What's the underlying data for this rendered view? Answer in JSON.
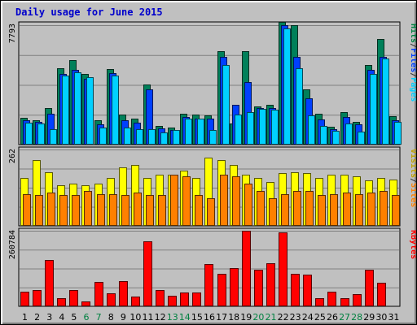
{
  "chart_data": {
    "title": "Daily usage for June 2015",
    "type": "bar",
    "days": [
      "1",
      "2",
      "3",
      "4",
      "5",
      "6",
      "7",
      "8",
      "9",
      "10",
      "11",
      "12",
      "13",
      "14",
      "15",
      "16",
      "17",
      "18",
      "19",
      "20",
      "21",
      "22",
      "23",
      "24",
      "25",
      "26",
      "27",
      "28",
      "29",
      "30",
      "31"
    ],
    "weekend_days": [
      "6",
      "7",
      "13",
      "14",
      "20",
      "21",
      "27",
      "28"
    ],
    "panels": [
      {
        "name": "top",
        "ymax_label": "7793",
        "ymax": 7793,
        "legend": [
          {
            "text": "Hits",
            "color": "#008040"
          },
          {
            "text": "/",
            "color": "#303030"
          },
          {
            "text": "Files",
            "color": "#0040ff"
          },
          {
            "text": "/",
            "color": "#303030"
          },
          {
            "text": "Pages",
            "color": "#00d0ff"
          }
        ],
        "series": [
          {
            "name": "Hits",
            "color": "#00805a",
            "values": [
              1750,
              1600,
              2400,
              5000,
              5500,
              4600,
              1600,
              4950,
              1950,
              1700,
              3900,
              1200,
              1100,
              2000,
              1950,
              1900,
              6100,
              1400,
              6100,
              2500,
              2600,
              8000,
              7800,
              3600,
              2000,
              1150,
              2100,
              1500,
              5200,
              6900,
              1850
            ]
          },
          {
            "name": "Files",
            "color": "#0040ff",
            "values": [
              1600,
              1500,
              2000,
              4600,
              4900,
              4300,
              1300,
              4650,
              1600,
              1450,
              3600,
              1050,
              950,
              1800,
              1700,
              1700,
              5700,
              2600,
              4100,
              2400,
              2400,
              7800,
              5700,
              3000,
              1650,
              1000,
              1800,
              1350,
              4900,
              5700,
              1600
            ]
          },
          {
            "name": "Pages",
            "color": "#00d0ff",
            "values": [
              1450,
              1400,
              1000,
              4500,
              4700,
              4400,
              1100,
              4500,
              1100,
              1000,
              1000,
              800,
              950,
              1700,
              1700,
              950,
              5200,
              1950,
              2100,
              2350,
              2300,
              7600,
              5000,
              1900,
              1200,
              900,
              1400,
              850,
              4600,
              5600,
              1500
            ]
          }
        ]
      },
      {
        "name": "middle",
        "ymax_label": "262",
        "ymax": 262,
        "legend": [
          {
            "text": "Visits",
            "color": "#c0a000"
          },
          {
            "text": "/",
            "color": "#303030"
          },
          {
            "text": "Sites",
            "color": "#ff8000"
          }
        ],
        "series": [
          {
            "name": "Visits",
            "color": "#ffff00",
            "values": [
              165,
              225,
              185,
              140,
              145,
              140,
              145,
              165,
              200,
              210,
              165,
              175,
              175,
              190,
              165,
              235,
              225,
              210,
              175,
              165,
              150,
              180,
              185,
              180,
              165,
              175,
              175,
              170,
              155,
              165,
              158
            ]
          },
          {
            "name": "Sites",
            "color": "#ff8000",
            "values": [
              110,
              105,
              115,
              105,
              105,
              120,
              110,
              110,
              105,
              115,
              105,
              105,
              175,
              170,
              105,
              95,
              175,
              170,
              145,
              120,
              95,
              110,
              120,
              120,
              105,
              110,
              115,
              110,
              115,
              120,
              105
            ]
          }
        ]
      },
      {
        "name": "bottom",
        "ymax_label": "260784",
        "ymax": 260784,
        "legend": [
          {
            "text": "KBytes",
            "color": "#ff0000"
          }
        ],
        "series": [
          {
            "name": "KBytes",
            "color": "#ff0000",
            "values": [
              50000,
              57000,
              160000,
              27000,
              55000,
              18000,
              85000,
              45000,
              88000,
              35000,
              225000,
              57000,
              37000,
              48000,
              48000,
              145000,
              112000,
              132000,
              260784,
              125000,
              150000,
              255000,
              112000,
              108000,
              28000,
              50000,
              28000,
              42000,
              125000,
              80000,
              0
            ]
          }
        ]
      }
    ]
  }
}
